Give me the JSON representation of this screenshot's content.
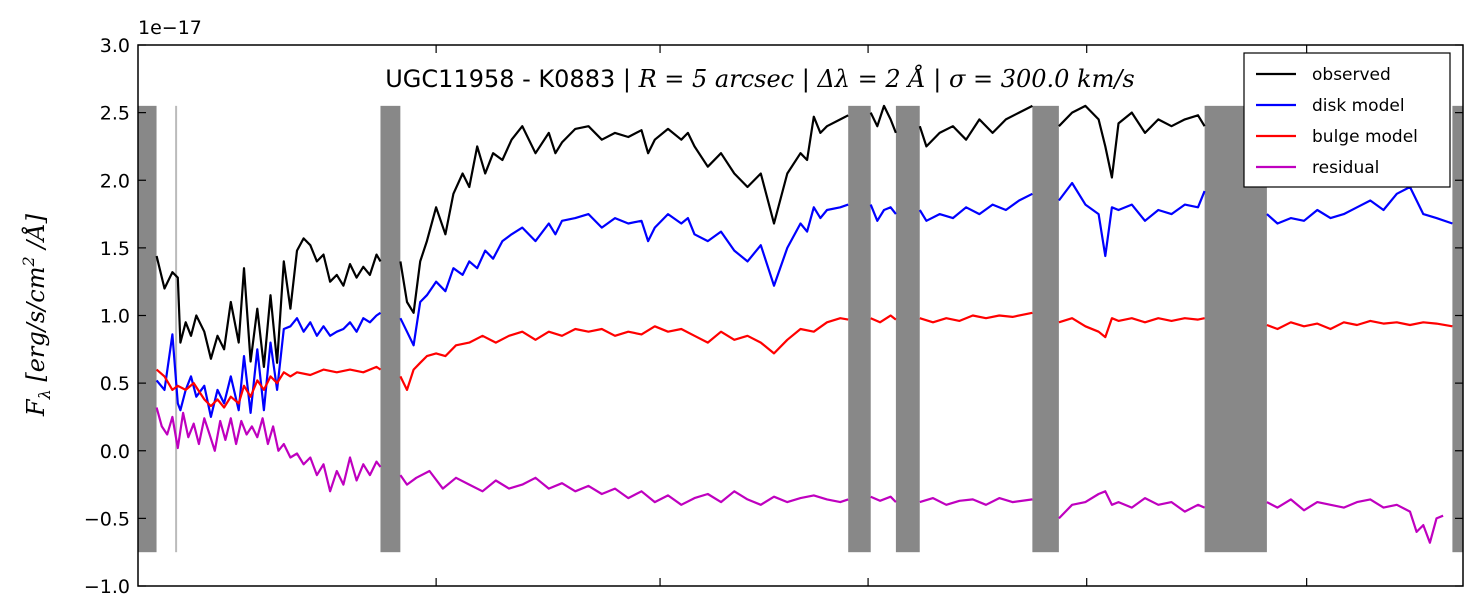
{
  "chart_data": {
    "type": "line",
    "title": "UGC11958 - K0883 | R = 5 arcsec | Δλ = 2 Å | σ = 300.0 km/s",
    "title_parts": {
      "prefix": "UGC11958 - K0883 | ",
      "r_eq": "R = 5 arcsec",
      "sep1": " | ",
      "dl_eq": "Δλ = 2 Å",
      "sep2": " | ",
      "sigma_eq": "σ = 300.0 km/s"
    },
    "ylabel": "F_λ [erg/s/cm² /Å]",
    "ylabel_parts": {
      "f": "F",
      "sub": "λ",
      "rest": " [erg/s/cm",
      "sup": "2",
      "end": " /Å]"
    },
    "y_offset_label": "1e−17",
    "ylim": [
      -1.0,
      3.0
    ],
    "yticks": [
      -1.0,
      -0.5,
      0.0,
      0.5,
      1.0,
      1.5,
      2.0,
      2.5,
      3.0
    ],
    "ytick_labels": [
      "−1.0",
      "−0.5",
      "0.0",
      "0.5",
      "1.0",
      "1.5",
      "2.0",
      "2.5",
      "3.0"
    ],
    "xlim": [
      0,
      100
    ],
    "xticks": [
      22.5,
      39.4,
      55.1,
      71.6,
      88.2
    ],
    "masked_regions_y": [
      -0.75,
      2.55
    ],
    "masked_regions": [
      [
        0,
        1.4
      ],
      [
        18.3,
        19.8
      ],
      [
        53.6,
        55.3
      ],
      [
        57.2,
        59.0
      ],
      [
        67.5,
        69.5
      ],
      [
        80.5,
        85.2
      ],
      [
        99.2,
        100
      ]
    ],
    "masked_regions_thin": [
      [
        2.8,
        2.95
      ]
    ],
    "legend_position": "top-right",
    "legend": [
      "observed",
      "disk model",
      "bulge model",
      "residual"
    ],
    "series": [
      {
        "name": "observed",
        "color": "#000000",
        "x": [
          1.4,
          2.0,
          2.6,
          3.0,
          3.2,
          3.6,
          4.0,
          4.4,
          5.0,
          5.5,
          6.0,
          6.5,
          7.0,
          7.6,
          8.0,
          8.5,
          9.0,
          9.5,
          10.0,
          10.5,
          11.0,
          11.5,
          12.0,
          12.5,
          13.0,
          13.5,
          14.0,
          14.5,
          15.0,
          15.5,
          16.0,
          16.5,
          17.0,
          17.5,
          18.0,
          18.3,
          null,
          19.8,
          20.3,
          20.8,
          21.3,
          21.8,
          22.5,
          23.2,
          23.8,
          24.5,
          25.0,
          25.6,
          26.2,
          26.8,
          27.5,
          28.2,
          29.0,
          30.0,
          31.0,
          31.5,
          32.0,
          33.0,
          34.0,
          35.0,
          36.0,
          37.0,
          38.0,
          38.5,
          39.0,
          40.0,
          41.0,
          41.5,
          42.0,
          43.0,
          44.0,
          45.0,
          46.0,
          47.0,
          48.0,
          49.0,
          50.0,
          50.5,
          51.0,
          51.5,
          52.0,
          53.0,
          53.6,
          null,
          55.3,
          55.8,
          56.3,
          56.8,
          57.2,
          null,
          59.0,
          59.5,
          60.5,
          61.5,
          62.5,
          63.5,
          64.5,
          65.5,
          66.5,
          67.5,
          null,
          69.5,
          70.5,
          71.5,
          72.5,
          73.0,
          73.5,
          74.0,
          75.0,
          76.0,
          77.0,
          78.0,
          79.0,
          80.0,
          80.5,
          null,
          85.2,
          86.0,
          86.5,
          87.0,
          87.5,
          88.0,
          88.5,
          89.0
        ],
        "y": [
          1.44,
          1.2,
          1.32,
          1.28,
          0.8,
          0.95,
          0.85,
          1.0,
          0.88,
          0.68,
          0.85,
          0.75,
          1.1,
          0.8,
          1.35,
          0.66,
          1.05,
          0.62,
          1.15,
          0.65,
          1.4,
          1.05,
          1.48,
          1.57,
          1.52,
          1.4,
          1.45,
          1.25,
          1.3,
          1.22,
          1.38,
          1.28,
          1.36,
          1.3,
          1.45,
          1.4,
          null,
          1.4,
          1.1,
          1.02,
          1.4,
          1.55,
          1.8,
          1.6,
          1.9,
          2.05,
          1.95,
          2.25,
          2.05,
          2.2,
          2.15,
          2.3,
          2.4,
          2.2,
          2.35,
          2.2,
          2.28,
          2.38,
          2.4,
          2.3,
          2.35,
          2.32,
          2.37,
          2.2,
          2.3,
          2.38,
          2.3,
          2.35,
          2.25,
          2.1,
          2.2,
          2.05,
          1.95,
          2.05,
          1.68,
          2.05,
          2.2,
          2.15,
          2.47,
          2.35,
          2.4,
          2.45,
          2.48,
          null,
          2.5,
          2.4,
          2.55,
          2.45,
          2.35,
          null,
          2.4,
          2.25,
          2.35,
          2.4,
          2.3,
          2.45,
          2.35,
          2.45,
          2.5,
          2.55,
          null,
          2.4,
          2.5,
          2.55,
          2.45,
          2.25,
          2.02,
          2.42,
          2.5,
          2.35,
          2.45,
          2.4,
          2.45,
          2.48,
          2.4,
          null,
          2.22,
          2.15,
          2.3,
          2.35,
          2.28,
          2.3,
          2.4,
          2.35
        ]
      },
      {
        "name": "disk model",
        "color": "#0000ff",
        "x": [
          1.4,
          2.0,
          2.6,
          3.0,
          3.2,
          3.6,
          4.0,
          4.4,
          5.0,
          5.5,
          6.0,
          6.5,
          7.0,
          7.6,
          8.0,
          8.5,
          9.0,
          9.5,
          10.0,
          10.5,
          11.0,
          11.5,
          12.0,
          12.5,
          13.0,
          13.5,
          14.0,
          14.5,
          15.0,
          15.5,
          16.0,
          16.5,
          17.0,
          17.5,
          18.0,
          18.3,
          null,
          19.8,
          20.3,
          20.8,
          21.3,
          21.8,
          22.5,
          23.2,
          23.8,
          24.5,
          25.0,
          25.6,
          26.2,
          26.8,
          27.5,
          28.2,
          29.0,
          30.0,
          31.0,
          31.5,
          32.0,
          33.0,
          34.0,
          35.0,
          36.0,
          37.0,
          38.0,
          38.5,
          39.0,
          40.0,
          41.0,
          41.5,
          42.0,
          43.0,
          44.0,
          45.0,
          46.0,
          47.0,
          48.0,
          49.0,
          50.0,
          50.5,
          51.0,
          51.5,
          52.0,
          53.0,
          53.6,
          null,
          55.3,
          55.8,
          56.3,
          56.8,
          57.2,
          null,
          59.0,
          59.5,
          60.5,
          61.5,
          62.5,
          63.5,
          64.5,
          65.5,
          66.5,
          67.5,
          null,
          69.5,
          70.5,
          71.5,
          72.5,
          73.0,
          73.5,
          74.0,
          75.0,
          76.0,
          77.0,
          78.0,
          79.0,
          80.0,
          80.5,
          null,
          85.2,
          86.0,
          87.0,
          88.0,
          89.0,
          90.0,
          91.0,
          92.0,
          93.0,
          94.0,
          95.0,
          96.0,
          97.0,
          98.0,
          99.2
        ],
        "y": [
          0.52,
          0.45,
          0.86,
          0.35,
          0.3,
          0.45,
          0.55,
          0.4,
          0.48,
          0.25,
          0.45,
          0.35,
          0.55,
          0.3,
          0.7,
          0.28,
          0.75,
          0.3,
          0.8,
          0.45,
          0.9,
          0.92,
          0.98,
          0.88,
          0.95,
          0.85,
          0.92,
          0.85,
          0.88,
          0.9,
          0.95,
          0.88,
          0.98,
          0.95,
          1.0,
          1.02,
          null,
          0.98,
          0.88,
          0.78,
          1.1,
          1.15,
          1.25,
          1.18,
          1.35,
          1.3,
          1.4,
          1.35,
          1.48,
          1.42,
          1.55,
          1.6,
          1.65,
          1.55,
          1.68,
          1.6,
          1.7,
          1.72,
          1.75,
          1.65,
          1.72,
          1.68,
          1.7,
          1.55,
          1.65,
          1.75,
          1.68,
          1.72,
          1.6,
          1.55,
          1.62,
          1.48,
          1.4,
          1.52,
          1.22,
          1.5,
          1.68,
          1.62,
          1.8,
          1.72,
          1.78,
          1.8,
          1.82,
          null,
          1.82,
          1.7,
          1.78,
          1.8,
          1.75,
          null,
          1.78,
          1.7,
          1.75,
          1.72,
          1.8,
          1.75,
          1.82,
          1.78,
          1.85,
          1.9,
          null,
          1.85,
          1.98,
          1.82,
          1.75,
          1.44,
          1.8,
          1.78,
          1.82,
          1.7,
          1.78,
          1.75,
          1.82,
          1.8,
          1.92,
          null,
          1.75,
          1.68,
          1.72,
          1.7,
          1.78,
          1.72,
          1.75,
          1.8,
          1.85,
          1.78,
          1.9,
          1.95,
          1.75,
          1.72,
          1.68
        ]
      },
      {
        "name": "bulge model",
        "color": "#ff0000",
        "x": [
          1.4,
          2.0,
          2.6,
          3.0,
          3.6,
          4.2,
          5.0,
          5.5,
          6.0,
          6.5,
          7.0,
          7.6,
          8.0,
          8.5,
          9.0,
          9.5,
          10.0,
          10.5,
          11.0,
          11.5,
          12.0,
          13.0,
          14.0,
          15.0,
          16.0,
          17.0,
          18.0,
          18.3,
          null,
          19.8,
          20.3,
          20.8,
          21.3,
          21.8,
          22.5,
          23.2,
          24.0,
          25.0,
          26.0,
          27.0,
          28.0,
          29.0,
          30.0,
          31.0,
          32.0,
          33.0,
          34.0,
          35.0,
          36.0,
          37.0,
          38.0,
          39.0,
          40.0,
          41.0,
          42.0,
          43.0,
          44.0,
          45.0,
          46.0,
          47.0,
          48.0,
          49.0,
          50.0,
          51.0,
          52.0,
          53.0,
          53.6,
          null,
          55.3,
          56.0,
          56.8,
          57.2,
          null,
          59.0,
          60.0,
          61.0,
          62.0,
          63.0,
          64.0,
          65.0,
          66.0,
          67.5,
          null,
          69.5,
          70.5,
          71.5,
          72.5,
          73.0,
          73.5,
          74.0,
          75.0,
          76.0,
          77.0,
          78.0,
          79.0,
          80.0,
          80.5,
          null,
          85.2,
          86.0,
          87.0,
          88.0,
          89.0,
          90.0,
          91.0,
          92.0,
          93.0,
          94.0,
          95.0,
          96.0,
          97.0,
          98.0,
          99.2
        ],
        "y": [
          0.6,
          0.55,
          0.45,
          0.48,
          0.45,
          0.5,
          0.38,
          0.33,
          0.38,
          0.32,
          0.4,
          0.35,
          0.48,
          0.4,
          0.52,
          0.45,
          0.55,
          0.5,
          0.58,
          0.55,
          0.58,
          0.56,
          0.6,
          0.58,
          0.6,
          0.58,
          0.62,
          0.6,
          null,
          0.55,
          0.45,
          0.6,
          0.65,
          0.7,
          0.72,
          0.7,
          0.78,
          0.8,
          0.85,
          0.8,
          0.85,
          0.88,
          0.82,
          0.88,
          0.85,
          0.9,
          0.88,
          0.9,
          0.85,
          0.88,
          0.86,
          0.92,
          0.88,
          0.9,
          0.85,
          0.8,
          0.88,
          0.82,
          0.85,
          0.8,
          0.72,
          0.82,
          0.9,
          0.88,
          0.95,
          0.98,
          0.97,
          null,
          0.98,
          0.95,
          1.0,
          0.97,
          null,
          0.98,
          0.95,
          0.98,
          0.96,
          1.0,
          0.98,
          1.0,
          0.99,
          1.02,
          null,
          0.95,
          0.98,
          0.92,
          0.88,
          0.84,
          0.98,
          0.96,
          0.98,
          0.95,
          0.98,
          0.96,
          0.98,
          0.97,
          0.98,
          null,
          0.93,
          0.9,
          0.95,
          0.92,
          0.94,
          0.9,
          0.95,
          0.93,
          0.96,
          0.94,
          0.95,
          0.93,
          0.95,
          0.94,
          0.92
        ]
      },
      {
        "name": "residual",
        "color": "#bf00bf",
        "x": [
          1.4,
          1.8,
          2.2,
          2.6,
          3.0,
          3.4,
          3.8,
          4.2,
          4.6,
          5.0,
          5.4,
          5.8,
          6.2,
          6.6,
          7.0,
          7.4,
          7.8,
          8.2,
          8.6,
          9.0,
          9.4,
          9.8,
          10.2,
          10.6,
          11.0,
          11.5,
          12.0,
          12.5,
          13.0,
          13.5,
          14.0,
          14.5,
          15.0,
          15.5,
          16.0,
          16.5,
          17.0,
          17.5,
          18.0,
          18.3,
          null,
          19.8,
          20.3,
          21.0,
          22.0,
          23.0,
          24.0,
          25.0,
          26.0,
          27.0,
          28.0,
          29.0,
          30.0,
          31.0,
          32.0,
          33.0,
          34.0,
          35.0,
          36.0,
          37.0,
          38.0,
          39.0,
          40.0,
          41.0,
          42.0,
          43.0,
          44.0,
          45.0,
          46.0,
          47.0,
          48.0,
          49.0,
          50.0,
          51.0,
          52.0,
          53.0,
          53.6,
          null,
          55.3,
          56.0,
          56.8,
          57.2,
          null,
          59.0,
          60.0,
          61.0,
          62.0,
          63.0,
          64.0,
          65.0,
          66.0,
          67.5,
          null,
          69.5,
          70.5,
          71.5,
          72.5,
          73.0,
          73.5,
          74.0,
          75.0,
          76.0,
          77.0,
          78.0,
          79.0,
          80.0,
          80.5,
          null,
          85.2,
          86.0,
          87.0,
          88.0,
          89.0,
          90.0,
          91.0,
          92.0,
          93.0,
          94.0,
          95.0,
          96.0,
          96.5,
          97.0,
          97.5,
          98.0,
          98.5,
          null,
          99.2
        ],
        "y": [
          0.32,
          0.18,
          0.12,
          0.25,
          0.02,
          0.28,
          0.1,
          0.2,
          0.05,
          0.24,
          0.12,
          0.0,
          0.22,
          0.08,
          0.24,
          0.05,
          0.22,
          0.12,
          0.18,
          0.1,
          0.24,
          0.05,
          0.18,
          0.0,
          0.05,
          -0.05,
          -0.02,
          -0.1,
          -0.05,
          -0.18,
          -0.1,
          -0.3,
          -0.15,
          -0.25,
          -0.05,
          -0.22,
          -0.1,
          -0.18,
          -0.08,
          -0.12,
          null,
          -0.18,
          -0.25,
          -0.2,
          -0.15,
          -0.28,
          -0.2,
          -0.25,
          -0.3,
          -0.22,
          -0.28,
          -0.25,
          -0.2,
          -0.28,
          -0.24,
          -0.3,
          -0.26,
          -0.32,
          -0.28,
          -0.35,
          -0.3,
          -0.38,
          -0.33,
          -0.4,
          -0.35,
          -0.32,
          -0.38,
          -0.3,
          -0.36,
          -0.4,
          -0.34,
          -0.38,
          -0.35,
          -0.33,
          -0.36,
          -0.38,
          -0.36,
          null,
          -0.34,
          -0.37,
          -0.34,
          -0.38,
          null,
          -0.38,
          -0.35,
          -0.4,
          -0.37,
          -0.36,
          -0.4,
          -0.35,
          -0.38,
          -0.36,
          null,
          -0.5,
          -0.4,
          -0.38,
          -0.32,
          -0.3,
          -0.4,
          -0.38,
          -0.42,
          -0.35,
          -0.4,
          -0.38,
          -0.45,
          -0.4,
          -0.42,
          null,
          -0.38,
          -0.42,
          -0.36,
          -0.44,
          -0.38,
          -0.4,
          -0.42,
          -0.38,
          -0.36,
          -0.42,
          -0.4,
          -0.45,
          -0.6,
          -0.55,
          -0.68,
          -0.5,
          -0.48,
          null,
          -0.4
        ]
      }
    ]
  }
}
